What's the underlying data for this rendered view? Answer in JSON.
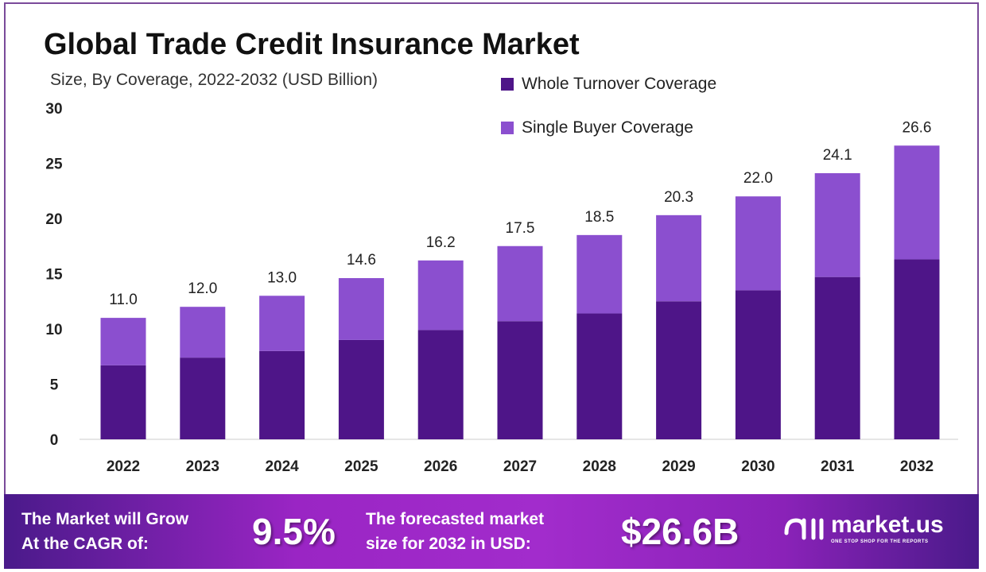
{
  "chart_data": {
    "type": "bar",
    "stacked": true,
    "title": "Global Trade Credit Insurance Market",
    "subtitle": "Size, By Coverage, 2022-2032 (USD Billion)",
    "categories": [
      "2022",
      "2023",
      "2024",
      "2025",
      "2026",
      "2027",
      "2028",
      "2029",
      "2030",
      "2031",
      "2032"
    ],
    "series": [
      {
        "name": "Whole Turnover Coverage",
        "color": "#4e1588",
        "values": [
          6.7,
          7.4,
          8.0,
          9.0,
          9.9,
          10.7,
          11.4,
          12.5,
          13.5,
          14.7,
          16.3
        ]
      },
      {
        "name": "Single Buyer Coverage",
        "color": "#8b4fcf",
        "values": [
          4.3,
          4.6,
          5.0,
          5.6,
          6.3,
          6.8,
          7.1,
          7.8,
          8.5,
          9.4,
          10.3
        ]
      }
    ],
    "totals": [
      "11.0",
      "12.0",
      "13.0",
      "14.6",
      "16.2",
      "17.5",
      "18.5",
      "20.3",
      "22.0",
      "24.1",
      "26.6"
    ],
    "yticks": [
      "0",
      "5",
      "10",
      "15",
      "20",
      "25",
      "30"
    ],
    "ylim": [
      0,
      30
    ],
    "grid": false,
    "legend": "top-right"
  },
  "banner": {
    "cagr_label_1": "The Market will Grow",
    "cagr_label_2": "At the CAGR of:",
    "cagr_value": "9.5%",
    "forecast_label_1": "The forecasted market",
    "forecast_label_2": "size for 2032 in USD:",
    "forecast_value": "$26.6B",
    "logo_name": "market.us",
    "logo_tagline": "ONE STOP SHOP FOR THE REPORTS"
  }
}
